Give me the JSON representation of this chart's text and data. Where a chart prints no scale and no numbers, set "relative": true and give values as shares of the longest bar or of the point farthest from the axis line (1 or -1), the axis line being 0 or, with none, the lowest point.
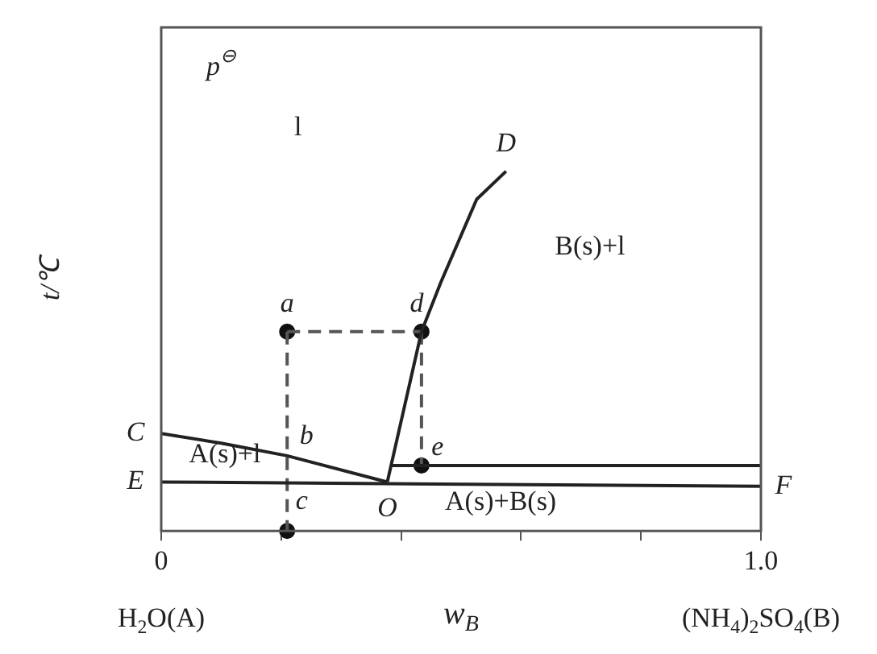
{
  "chart_data": {
    "type": "line",
    "xlabel": "w$_{B}$",
    "ylabel": "t/℃",
    "relative": true,
    "xlim": [
      0,
      1
    ],
    "xticks": [
      0,
      {
        "value": 0.2,
        "label": null
      },
      {
        "value": 0.4,
        "label": null
      },
      {
        "value": 0.6,
        "label": null
      },
      {
        "value": 0.8,
        "label": null
      },
      {
        "value": 1,
        "label": "1.0"
      }
    ],
    "series": [
      {
        "color": "#222222",
        "line_style": "solid",
        "x": [
          0,
          0.1,
          0.21,
          0.377
        ],
        "values": [
          0.271,
          0.244,
          0.209,
          0.136
        ]
      },
      {
        "color": "#222222",
        "line_style": "solid",
        "x": [
          0.377,
          0.434,
          0.466,
          0.526,
          0.575
        ],
        "values": [
          0.136,
          0.554,
          0.69,
          0.922,
          1
        ]
      },
      {
        "color": "#222222",
        "line_style": "solid",
        "x": [
          0,
          1
        ],
        "values": [
          0.136,
          0.124
        ]
      },
      {
        "color": "#222222",
        "line_style": "solid",
        "x": [
          0.385,
          1
        ],
        "values": [
          0.182,
          0.182
        ]
      },
      {
        "color": "#555555",
        "line_style": "dashed",
        "x": [
          0.21,
          0.434
        ],
        "values": [
          0.554,
          0.554
        ]
      },
      {
        "color": "#555555",
        "line_style": "dashed",
        "x": [
          0.21,
          0.21
        ],
        "values": [
          0.554,
          0
        ]
      },
      {
        "color": "#555555",
        "line_style": "dashed",
        "x": [
          0.434,
          0.434
        ],
        "values": [
          0.554,
          0.182
        ]
      },
      {
        "type": "scatter",
        "color": "#111111",
        "marker": "circle",
        "x": [
          0.21,
          0.434,
          0.434,
          0.21
        ],
        "values": [
          0.554,
          0.554,
          0.182,
          0
        ]
      }
    ],
    "annotations": [
      "p$^{⊖}$",
      "l",
      {
        "text": "D",
        "x": 0.575,
        "y": 1
      },
      "B(s)+l",
      {
        "text": "a",
        "x": 0.21,
        "y": 0.554
      },
      {
        "text": "d",
        "x": 0.434,
        "y": 0.554
      },
      {
        "text": "C",
        "x": 0,
        "y": 0.271
      },
      {
        "text": "b",
        "x": 0.21,
        "y": 0.209
      },
      {
        "text": "e",
        "x": 0.434,
        "y": 0.182
      },
      "A(s)+l",
      {
        "text": "E",
        "x": 0,
        "y": 0.136
      },
      {
        "text": "F",
        "x": 1,
        "y": 0.124
      },
      {
        "text": "O",
        "x": 0.377,
        "y": 0.136
      },
      {
        "text": "c",
        "x": 0.21,
        "y": 0
      },
      "A(s)+B(s)",
      "H$_{2}$O(A)",
      "(NH$_{4}$)$_{2}$SO$_{4}$(B)"
    ]
  }
}
